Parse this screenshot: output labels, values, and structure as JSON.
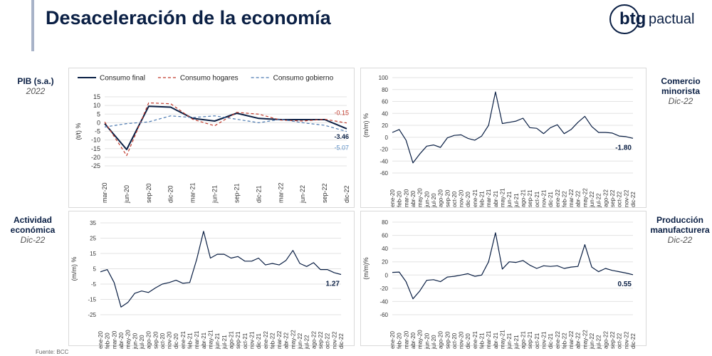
{
  "header": {
    "title": "Desaceleración de la economía"
  },
  "logo": {
    "mark": "btg",
    "text": "pactual"
  },
  "footer": {
    "source": "Fuente: BCC"
  },
  "panels": {
    "pib": {
      "label": "PIB (s.a.)",
      "sub": "2022"
    },
    "comercio": {
      "label_line1": "Comercio",
      "label_line2": "minorista",
      "sub": "Dic-22"
    },
    "actividad": {
      "label_line1": "Actividad",
      "label_line2": "económica",
      "sub": "Dic-22"
    },
    "produccion": {
      "label_line1": "Producción",
      "label_line2": "manufacturera",
      "sub": "Dic-22"
    }
  },
  "colors": {
    "navy": "#0a1f44",
    "red": "#c0392b",
    "blue": "#4a78b0",
    "grid": "#e3e3e3"
  },
  "chart_data": [
    {
      "id": "pib",
      "type": "line",
      "ylabel": "(t/t) %",
      "ylim": [
        -25,
        15
      ],
      "yticks": [
        15,
        10,
        5,
        0,
        -5,
        -10,
        -15,
        -20,
        -25
      ],
      "categories": [
        "mar-20",
        "jun-20",
        "sep-20",
        "dic-20",
        "mar-21",
        "jun-21",
        "sep-21",
        "dic-21",
        "mar-22",
        "jun-22",
        "sep-22",
        "dic-22"
      ],
      "legend": "top",
      "series": [
        {
          "name": "Consumo final",
          "style": "solid",
          "color": "#0a1f44",
          "values": [
            -0.5,
            -15.5,
            9.5,
            9.0,
            2.5,
            1.0,
            5.5,
            2.5,
            1.8,
            1.8,
            1.8,
            -3.46
          ],
          "end_label": "-3.46"
        },
        {
          "name": "Consumo hogares",
          "style": "dash",
          "color": "#c0392b",
          "values": [
            0.5,
            -19,
            11.5,
            11.0,
            2.0,
            -1.8,
            6.0,
            5.0,
            1.5,
            1.0,
            2.0,
            -0.15
          ],
          "end_label": "-0.15"
        },
        {
          "name": "Consumo gobierno",
          "style": "dash",
          "color": "#4a78b0",
          "values": [
            -2.5,
            -0.5,
            0.5,
            4.0,
            3.0,
            4.0,
            2.0,
            0.0,
            2.0,
            0.0,
            -1.5,
            -5.07
          ],
          "end_label": "-5.07"
        }
      ]
    },
    {
      "id": "comercio",
      "type": "line",
      "ylabel": "(m/m) %",
      "ylim": [
        -60,
        100
      ],
      "yticks": [
        100,
        80,
        60,
        40,
        20,
        0,
        -20,
        -40,
        -60
      ],
      "categories": [
        "ene-20",
        "feb-20",
        "mar-20",
        "abr-20",
        "may-20",
        "jun-20",
        "jul-20",
        "ago-20",
        "sep-20",
        "oct-20",
        "nov-20",
        "dic-20",
        "ene-21",
        "feb-21",
        "mar-21",
        "abr-21",
        "may-21",
        "jun-21",
        "jul-21",
        "ago-21",
        "sep-21",
        "oct-21",
        "nov-21",
        "dic-21",
        "ene-22",
        "feb-22",
        "mar-22",
        "abr-22",
        "may-22",
        "jun-22",
        "jul-22",
        "ago-22",
        "sep-22",
        "oct-22",
        "nov-22",
        "dic-22"
      ],
      "series": [
        {
          "name": "",
          "color": "#0a1f44",
          "values": [
            8,
            13,
            -5,
            -43,
            -28,
            -15,
            -13,
            -17,
            -1,
            3,
            4,
            -2,
            -5,
            2,
            20,
            76,
            23,
            25,
            27,
            32,
            16,
            15,
            6,
            16,
            21,
            6,
            13,
            25,
            35,
            18,
            8,
            8,
            7,
            2,
            1,
            -1.8
          ],
          "end_label": "-1.80"
        }
      ]
    },
    {
      "id": "actividad",
      "type": "line",
      "ylabel": "(m/m) %",
      "ylim": [
        -25,
        35
      ],
      "yticks": [
        35,
        25,
        15,
        5,
        -5,
        -15,
        -25
      ],
      "categories": [
        "ene-20",
        "feb-20",
        "mar-20",
        "abr-20",
        "may-20",
        "jun-20",
        "jul-20",
        "ago-20",
        "sep-20",
        "oct-20",
        "nov-20",
        "dic-20",
        "ene-21",
        "feb-21",
        "mar-21",
        "abr-21",
        "may-21",
        "jun-21",
        "jul-21",
        "ago-21",
        "sep-21",
        "oct-21",
        "nov-21",
        "dic-21",
        "ene-22",
        "feb-22",
        "mar-22",
        "abr-22",
        "may-22",
        "jun-22",
        "jul-22",
        "ago-22",
        "sep-22",
        "oct-22",
        "nov-22",
        "dic-22"
      ],
      "series": [
        {
          "name": "",
          "color": "#0a1f44",
          "values": [
            3,
            4.5,
            -4,
            -20,
            -17,
            -11,
            -9.5,
            -10.5,
            -7.5,
            -5,
            -4,
            -2.5,
            -4.5,
            -4,
            11,
            29.5,
            12,
            14.5,
            14.5,
            12,
            13,
            10,
            10,
            12,
            7.5,
            8.5,
            7.5,
            10.5,
            17,
            8.5,
            6.5,
            9,
            4.5,
            4.5,
            2.5,
            1.27
          ],
          "end_label": "1.27"
        }
      ]
    },
    {
      "id": "produccion",
      "type": "line",
      "ylabel": "(m/m)%",
      "ylim": [
        -60,
        80
      ],
      "yticks": [
        80,
        60,
        40,
        20,
        0,
        -20,
        -40,
        -60
      ],
      "categories": [
        "ene-20",
        "feb-20",
        "mar-20",
        "abr-20",
        "may-20",
        "jun-20",
        "jul-20",
        "ago-20",
        "sep-20",
        "oct-20",
        "nov-20",
        "dic-20",
        "ene-21",
        "feb-21",
        "mar-21",
        "abr-21",
        "may-21",
        "jun-21",
        "jul-21",
        "ago-21",
        "sep-21",
        "oct-21",
        "nov-21",
        "dic-21",
        "ene-22",
        "feb-22",
        "mar-22",
        "abr-22",
        "may-22",
        "jun-22",
        "jul-22",
        "ago-22",
        "sep-22",
        "oct-22",
        "nov-22",
        "dic-22"
      ],
      "series": [
        {
          "name": "",
          "color": "#0a1f44",
          "values": [
            4,
            4.5,
            -10,
            -36,
            -24,
            -8,
            -7,
            -10,
            -3,
            -2,
            0,
            2,
            -2,
            0,
            20,
            64,
            9,
            20,
            19,
            22,
            15,
            10,
            14,
            13,
            14,
            10,
            12,
            13,
            46,
            12,
            5,
            10,
            7,
            5,
            3,
            0.55
          ],
          "end_label": "0.55"
        }
      ]
    }
  ]
}
